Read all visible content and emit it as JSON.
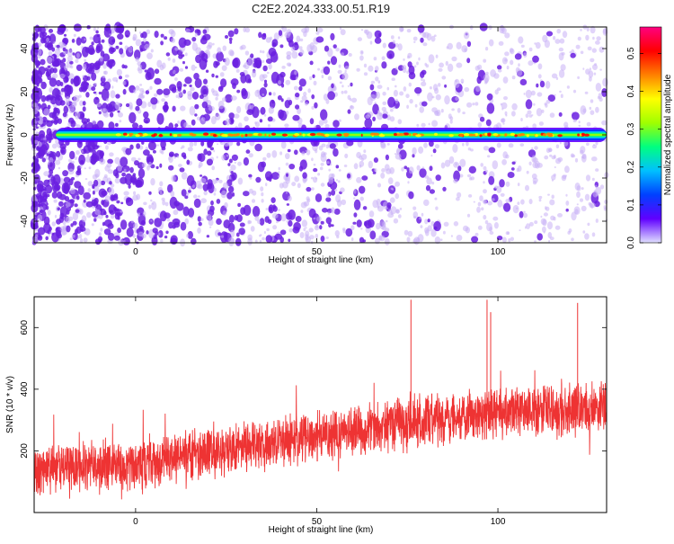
{
  "title": "C2E2.2024.333.00.51.R19",
  "colors": {
    "signal_band": "#2a8a6a",
    "snr_line": "#ee3333",
    "scatter_strong": "#6a1fe0",
    "scatter_weak": "#c8b0f5",
    "colorbar": [
      "#e0e0ff",
      "#6000ff",
      "#0040ff",
      "#00c0ff",
      "#00ff80",
      "#a0ff00",
      "#ffff00",
      "#ff8000",
      "#ff0000",
      "#ff0080"
    ]
  },
  "chart_data": [
    {
      "type": "heatmap",
      "title": "C2E2.2024.333.00.51.R19",
      "xlabel": "Height of straight line (km)",
      "ylabel": "Frequency (Hz)",
      "xlim": [
        -28,
        130
      ],
      "ylim": [
        -50,
        50
      ],
      "xticks": [
        0,
        50,
        100
      ],
      "yticks": [
        -40,
        -20,
        0,
        20,
        40
      ],
      "description_series": [
        {
          "name": "signal_band_center_frequency_hz",
          "values": [
            0
          ]
        }
      ],
      "colorbar": {
        "label": "Normalized spectral amplitude",
        "ticks": [
          0.0,
          0.1,
          0.2,
          0.3,
          0.4,
          0.5
        ],
        "range": [
          0.0,
          0.57
        ]
      }
    },
    {
      "type": "line",
      "xlabel": "Height of straight line (km)",
      "ylabel": "SNR (10 * v/v)",
      "xlim": [
        -28,
        130
      ],
      "ylim": [
        0,
        700
      ],
      "xticks": [
        0,
        50,
        100
      ],
      "yticks": [
        200,
        400,
        600
      ],
      "trend": {
        "x": [
          -28,
          0,
          25,
          50,
          75,
          100,
          130
        ],
        "y": [
          130,
          160,
          200,
          250,
          290,
          320,
          340
        ]
      },
      "noise_amplitude": 70,
      "spikes": [
        {
          "x": 76,
          "y": 690
        },
        {
          "x": 97,
          "y": 690
        },
        {
          "x": 98,
          "y": 650
        },
        {
          "x": 122,
          "y": 680
        }
      ]
    }
  ]
}
